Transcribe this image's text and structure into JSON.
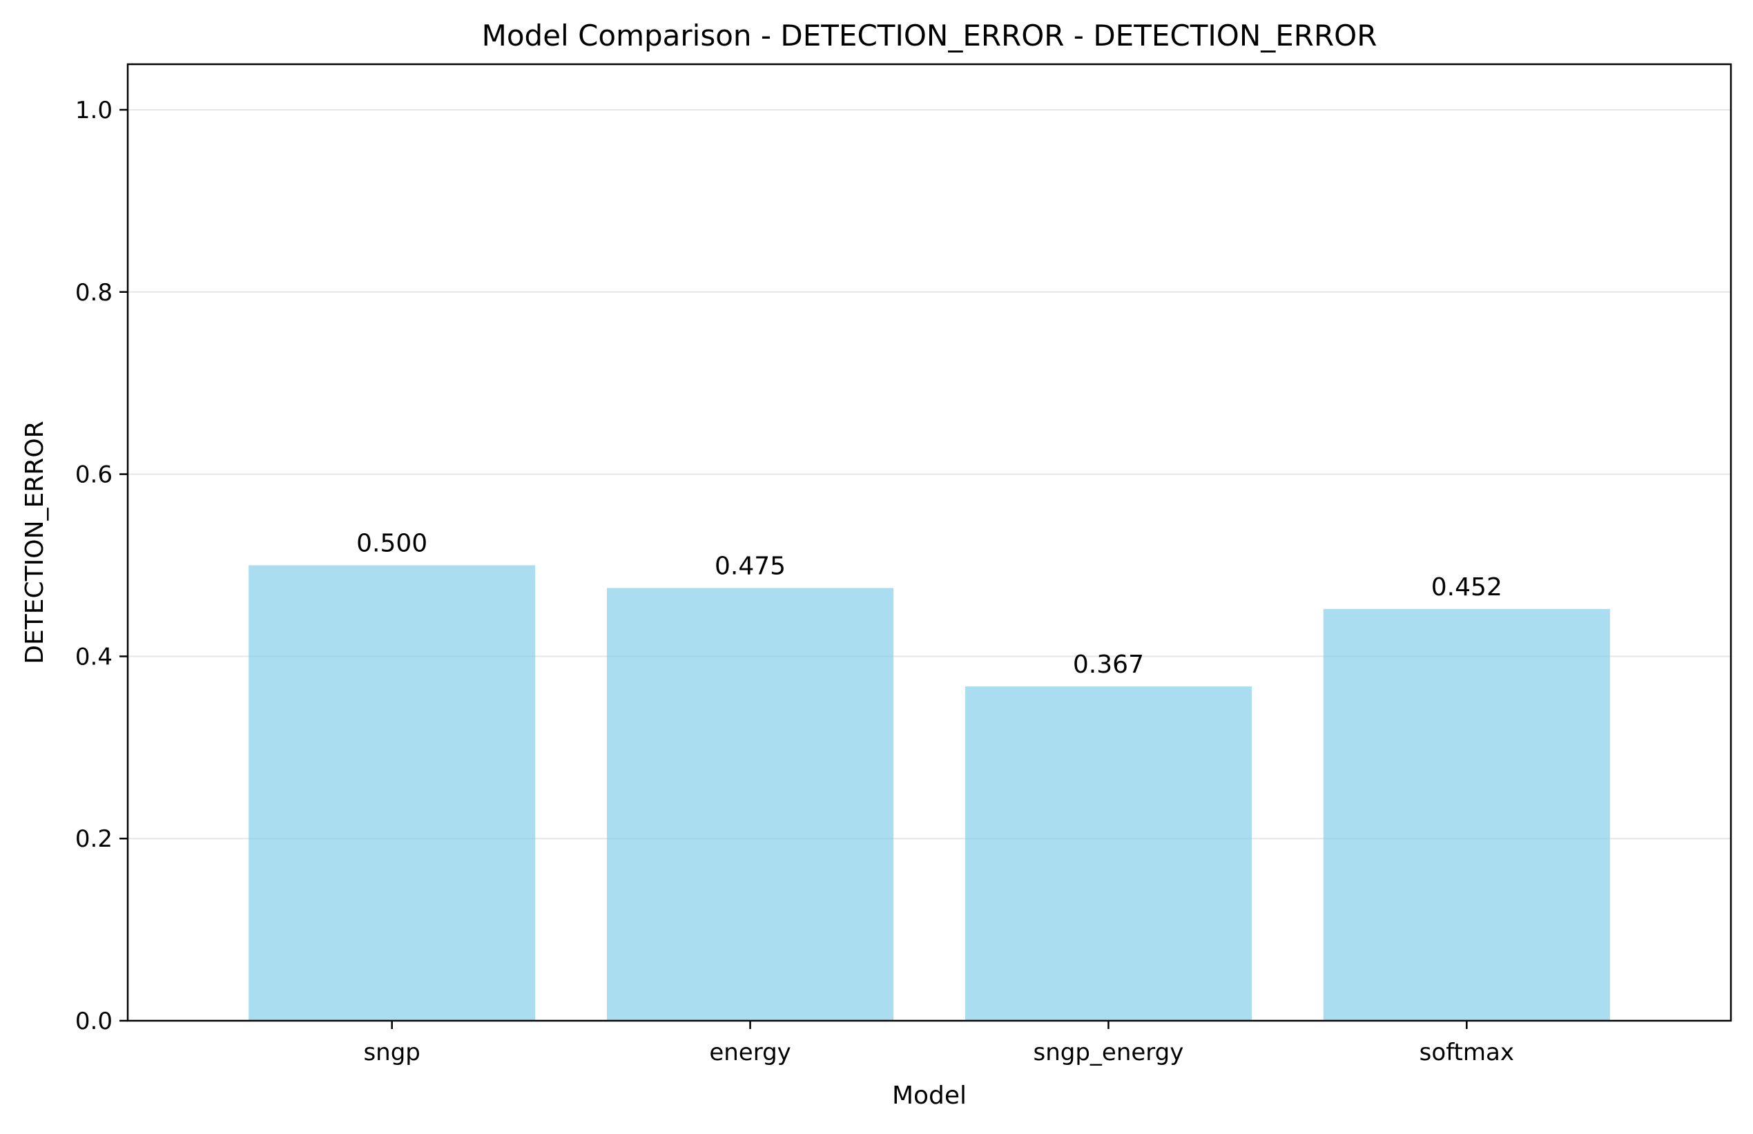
{
  "chart_data": {
    "type": "bar",
    "title": "Model Comparison - DETECTION_ERROR - DETECTION_ERROR",
    "xlabel": "Model",
    "ylabel": "DETECTION_ERROR",
    "categories": [
      "sngp",
      "energy",
      "sngp_energy",
      "softmax"
    ],
    "values": [
      0.5,
      0.475,
      0.367,
      0.452
    ],
    "value_labels": [
      "0.500",
      "0.475",
      "0.367",
      "0.452"
    ],
    "ylim": [
      0,
      1.05
    ],
    "yticks": [
      0.0,
      0.2,
      0.4,
      0.6,
      0.8,
      1.0
    ],
    "ytick_labels": [
      "0.0",
      "0.2",
      "0.4",
      "0.6",
      "0.8",
      "1.0"
    ],
    "grid": "y-axis, light",
    "legend": "none",
    "colors": {
      "bar": "#87ceeb",
      "bar_opacity": 0.7,
      "grid": "#e6e6e6",
      "axis": "#000000"
    }
  }
}
